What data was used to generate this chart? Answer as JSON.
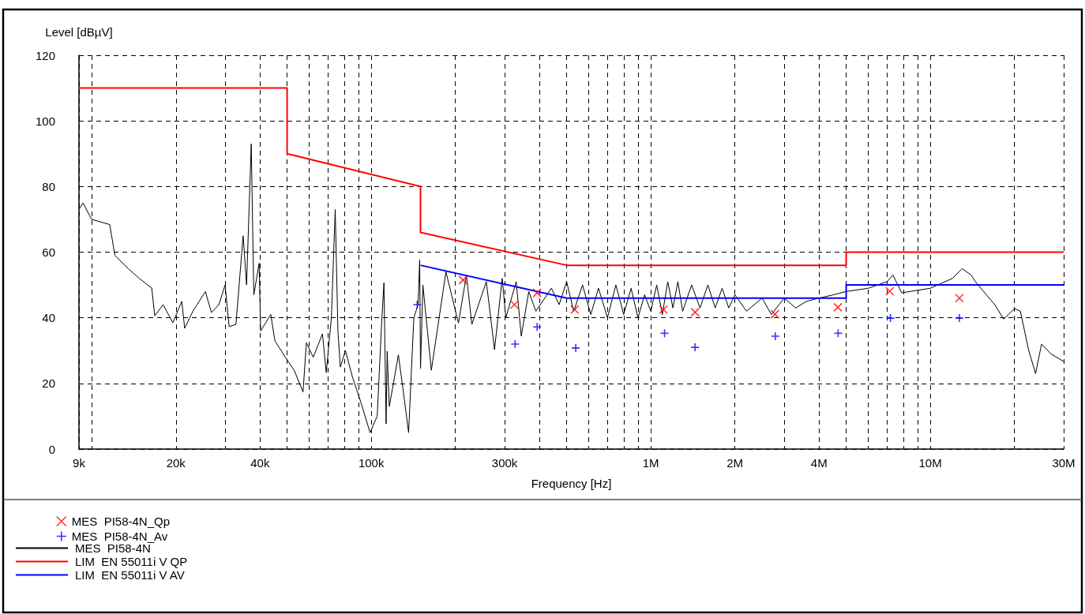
{
  "chart_data": {
    "type": "line",
    "xlabel": "Frequency [Hz]",
    "ylabel": "Level [dBµV]",
    "log": "x",
    "grid": true,
    "legend": "bottom left",
    "xlim": [
      9000,
      30000000
    ],
    "ylim": [
      0,
      120
    ],
    "xticks": [
      {
        "value": 9000,
        "label": "9k"
      },
      {
        "value": 10000,
        "label": null
      },
      {
        "value": 20000,
        "label": "20k"
      },
      {
        "value": 30000,
        "label": null
      },
      {
        "value": 40000,
        "label": "40k"
      },
      {
        "value": 50000,
        "label": null
      },
      {
        "value": 60000,
        "label": null
      },
      {
        "value": 70000,
        "label": null
      },
      {
        "value": 80000,
        "label": null
      },
      {
        "value": 90000,
        "label": null
      },
      {
        "value": 100000,
        "label": "100k"
      },
      {
        "value": 200000,
        "label": null
      },
      {
        "value": 300000,
        "label": "300k"
      },
      {
        "value": 400000,
        "label": null
      },
      {
        "value": 500000,
        "label": null
      },
      {
        "value": 600000,
        "label": null
      },
      {
        "value": 700000,
        "label": null
      },
      {
        "value": 800000,
        "label": null
      },
      {
        "value": 900000,
        "label": null
      },
      {
        "value": 1000000,
        "label": "1M"
      },
      {
        "value": 2000000,
        "label": "2M"
      },
      {
        "value": 3000000,
        "label": null
      },
      {
        "value": 4000000,
        "label": "4M"
      },
      {
        "value": 5000000,
        "label": null
      },
      {
        "value": 6000000,
        "label": null
      },
      {
        "value": 7000000,
        "label": null
      },
      {
        "value": 8000000,
        "label": null
      },
      {
        "value": 9000000,
        "label": null
      },
      {
        "value": 10000000,
        "label": "10M"
      },
      {
        "value": 20000000,
        "label": null
      },
      {
        "value": 30000000,
        "label": "30M"
      }
    ],
    "yticks": [
      0,
      20,
      40,
      60,
      80,
      100,
      120
    ],
    "series": [
      {
        "name": "MES  PI58-4N_Qp",
        "type": "scatter",
        "marker": "x",
        "color": "#ff0000",
        "x": [
          213000,
          325000,
          392000,
          534000,
          1110000,
          1440000,
          2780000,
          4670000,
          7160000,
          12700000
        ],
        "values": [
          51.5,
          44.0,
          47.6,
          42.5,
          42.5,
          41.7,
          41.1,
          43.2,
          48.1,
          46.0
        ]
      },
      {
        "name": "MES  PI58-4N_Av",
        "type": "scatter",
        "marker": "cross",
        "color": "#0000ff",
        "x": [
          146000,
          327000,
          392000,
          539000,
          1120000,
          1440000,
          2790000,
          4680000,
          7200000,
          12700000
        ],
        "values": [
          44.0,
          32.0,
          37.2,
          30.8,
          35.3,
          31.0,
          34.4,
          35.3,
          39.9,
          39.9
        ]
      },
      {
        "name": "MES  PI58-4N",
        "type": "line",
        "marker": "none",
        "color": "#000000",
        "x": [
          9000,
          9300,
          9990,
          11600,
          12100,
          13500,
          14800,
          16400,
          16800,
          18000,
          19500,
          21000,
          21500,
          23000,
          25500,
          26800,
          28500,
          30000,
          31000,
          32800,
          34800,
          35800,
          37200,
          38000,
          39700,
          40200,
          43700,
          45200,
          49500,
          53000,
          57000,
          58600,
          62000,
          66900,
          69000,
          72000,
          74300,
          76000,
          77500,
          80800,
          85600,
          92000,
          99000,
          105000,
          109000,
          111000,
          113000,
          114000,
          116000,
          120000,
          125000,
          130000,
          136000,
          142000,
          147000,
          149000,
          150000,
          153000,
          164000,
          185000,
          205000,
          219000,
          229000,
          258000,
          276000,
          294000,
          303000,
          330000,
          344000,
          366000,
          388000,
          441000,
          470000,
          500000,
          530000,
          570000,
          610000,
          650000,
          700000,
          750000,
          800000,
          850000,
          900000,
          950000,
          1000000,
          1050000,
          1100000,
          1150000,
          1200000,
          1250000,
          1300000,
          1400000,
          1500000,
          1600000,
          1700000,
          1800000,
          1900000,
          2000000,
          2200000,
          2500000,
          2700000,
          3000000,
          3300000,
          3600000,
          4000000,
          4500000,
          5000000,
          6000000,
          7000000,
          7350000,
          7900000,
          10000000,
          12000000,
          13000000,
          14000000,
          14500000,
          17000000,
          18300000,
          20000000,
          21000000,
          22500000,
          23800000,
          25000000,
          27000000,
          30000000
        ],
        "values": [
          73,
          75,
          70,
          68.4,
          59,
          55,
          52,
          49,
          40.6,
          44,
          38.5,
          45,
          36.8,
          42,
          48,
          41.6,
          44,
          50,
          37.3,
          38,
          65,
          50,
          93,
          47,
          56.6,
          36,
          41,
          33,
          27.7,
          24,
          17.4,
          32.4,
          28,
          35.1,
          23.3,
          40,
          73,
          35.7,
          25,
          30,
          22,
          14,
          5,
          10,
          39,
          50.7,
          7.7,
          29.8,
          13,
          20,
          28.7,
          18,
          5,
          40,
          44,
          57.7,
          24.5,
          50,
          24,
          54,
          38.4,
          53,
          38,
          51,
          30.3,
          52,
          40,
          51,
          34.4,
          48,
          42,
          49,
          44,
          51,
          42,
          50,
          41,
          49,
          40,
          50,
          41,
          49,
          40,
          47,
          42,
          50,
          41,
          51,
          43,
          51,
          42,
          50,
          43,
          50,
          43,
          49,
          43,
          47,
          42,
          46,
          41,
          46,
          43,
          45,
          46,
          47,
          48,
          49,
          51,
          53,
          47.6,
          49,
          52,
          55,
          53,
          51,
          44,
          39.6,
          42.8,
          42,
          30,
          23,
          32,
          29,
          26.7
        ]
      },
      {
        "name": "LIM  EN 55011i V QP",
        "type": "line",
        "marker": "none",
        "color": "#ff0000",
        "x": [
          9000,
          50000,
          50000,
          150000,
          150000,
          500000,
          5000000,
          5000000,
          30000000
        ],
        "values": [
          110,
          110,
          90,
          80,
          66,
          56,
          56,
          60,
          60
        ]
      },
      {
        "name": "LIM  EN 55011i V AV",
        "type": "line",
        "marker": "none",
        "color": "#0000ff",
        "x": [
          150000,
          500000,
          5000000,
          5000000,
          30000000
        ],
        "values": [
          56,
          46,
          46,
          50,
          50
        ]
      }
    ]
  }
}
